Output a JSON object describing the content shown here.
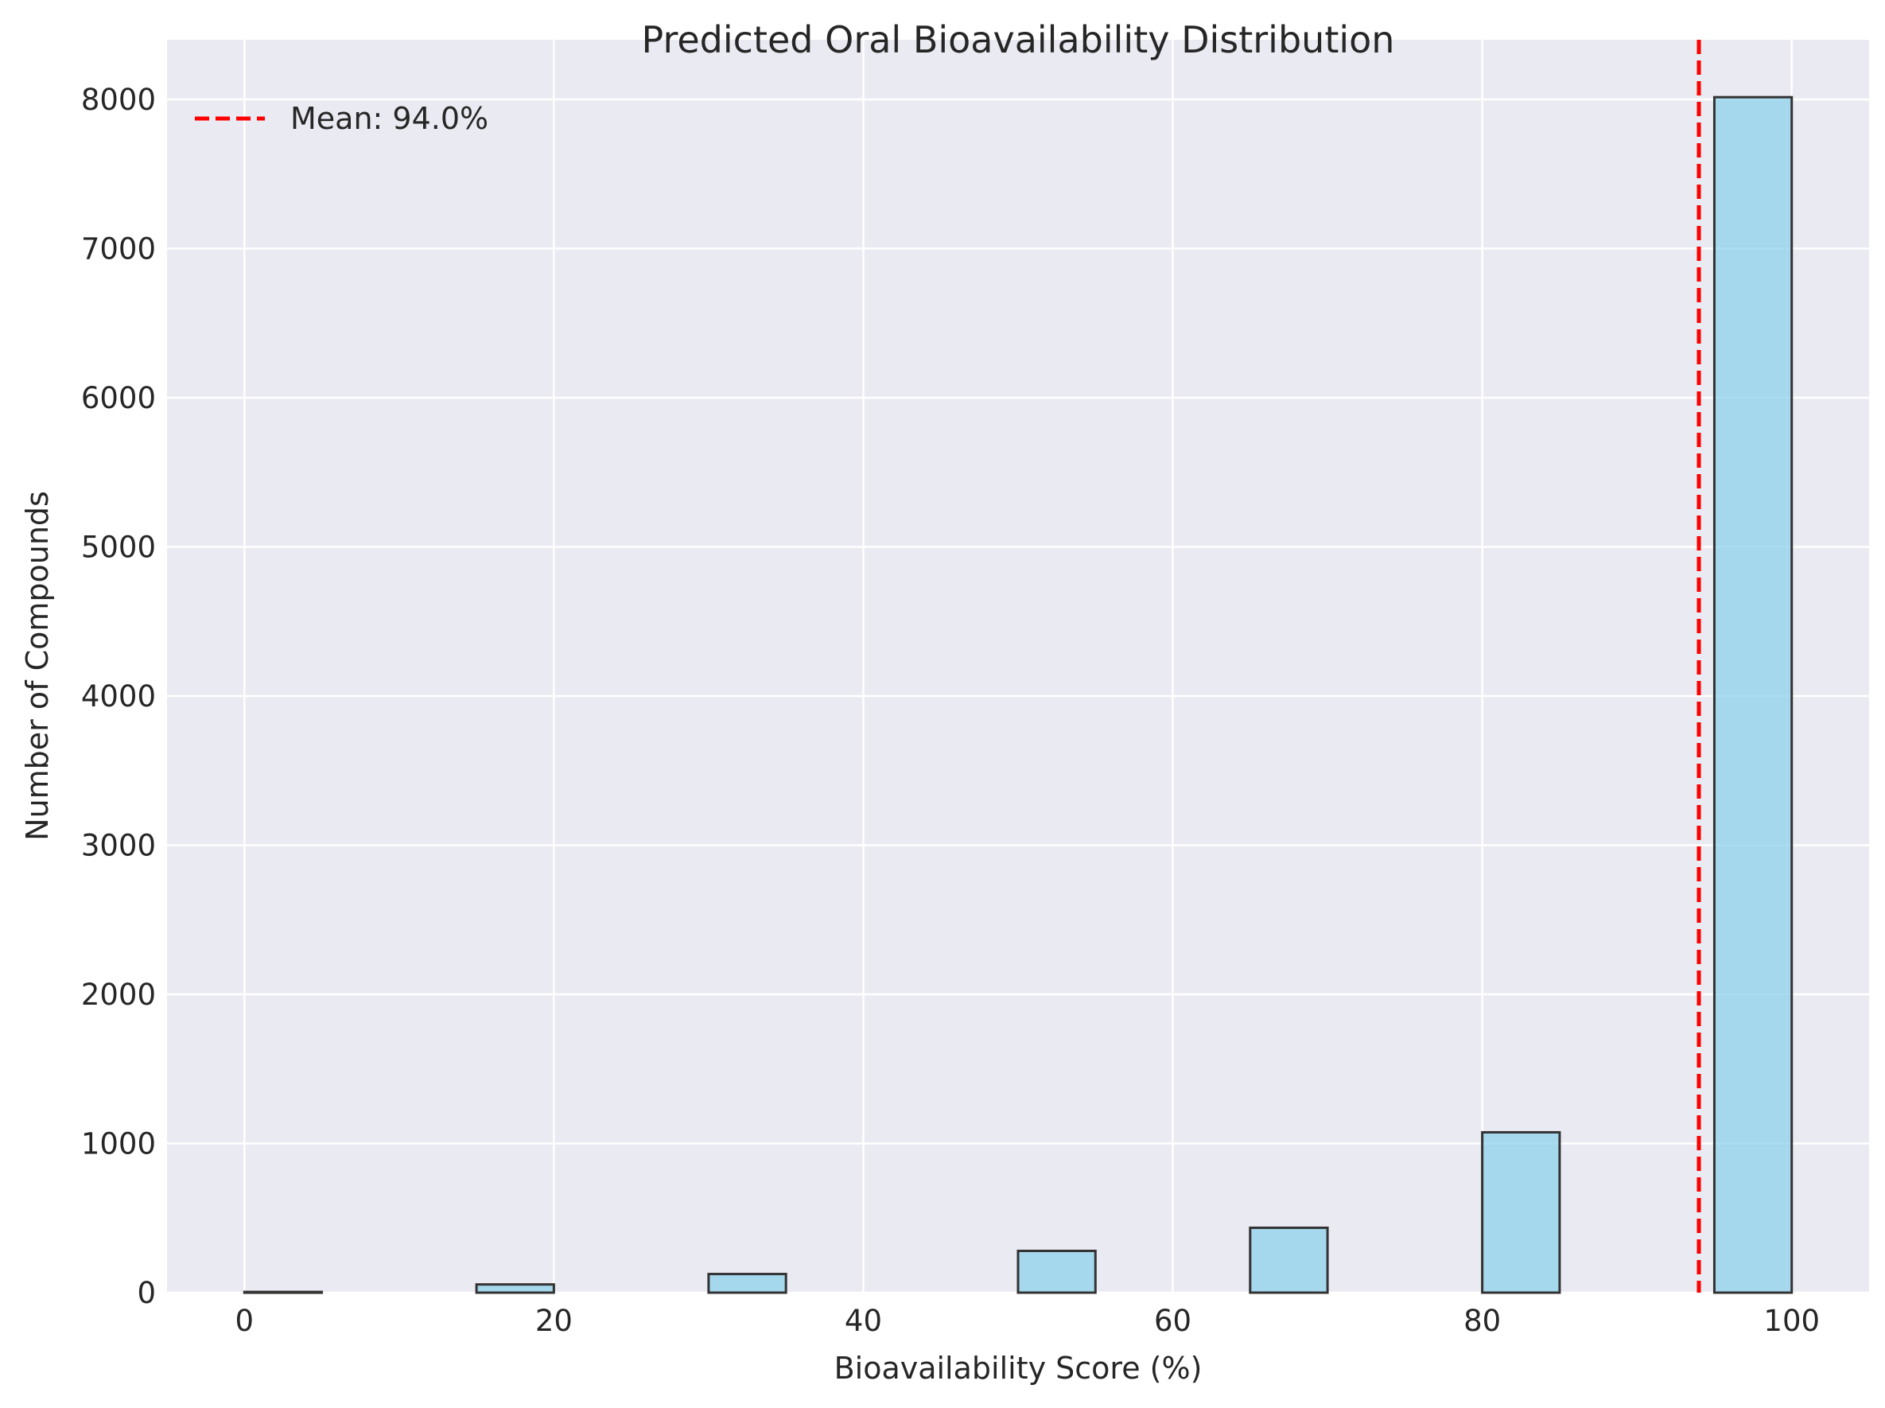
{
  "chart_data": {
    "type": "bar",
    "title": "Predicted Oral Bioavailability Distribution",
    "xlabel": "Bioavailability Score (%)",
    "ylabel": "Number of Compounds",
    "xlim": [
      -5,
      105
    ],
    "ylim": [
      0,
      8400
    ],
    "x_ticks": [
      0,
      20,
      40,
      60,
      80,
      100
    ],
    "y_ticks": [
      0,
      1000,
      2000,
      3000,
      4000,
      5000,
      6000,
      7000,
      8000
    ],
    "bins": [
      {
        "x0": 0,
        "x1": 5,
        "count": 5
      },
      {
        "x0": 15,
        "x1": 20,
        "count": 55
      },
      {
        "x0": 30,
        "x1": 35,
        "count": 125
      },
      {
        "x0": 50,
        "x1": 55,
        "count": 280
      },
      {
        "x0": 65,
        "x1": 70,
        "count": 435
      },
      {
        "x0": 80,
        "x1": 85,
        "count": 1075
      },
      {
        "x0": 95,
        "x1": 100,
        "count": 8015
      }
    ],
    "mean_line": {
      "value": 94.0,
      "label": "Mean: 94.0%",
      "color": "#ff0000",
      "style": "dashed"
    },
    "bar_color": "#87ceeb",
    "bar_edge_color": "#333333",
    "background_color": "#eaeaf2",
    "grid": true,
    "legend_position": "top-left"
  }
}
